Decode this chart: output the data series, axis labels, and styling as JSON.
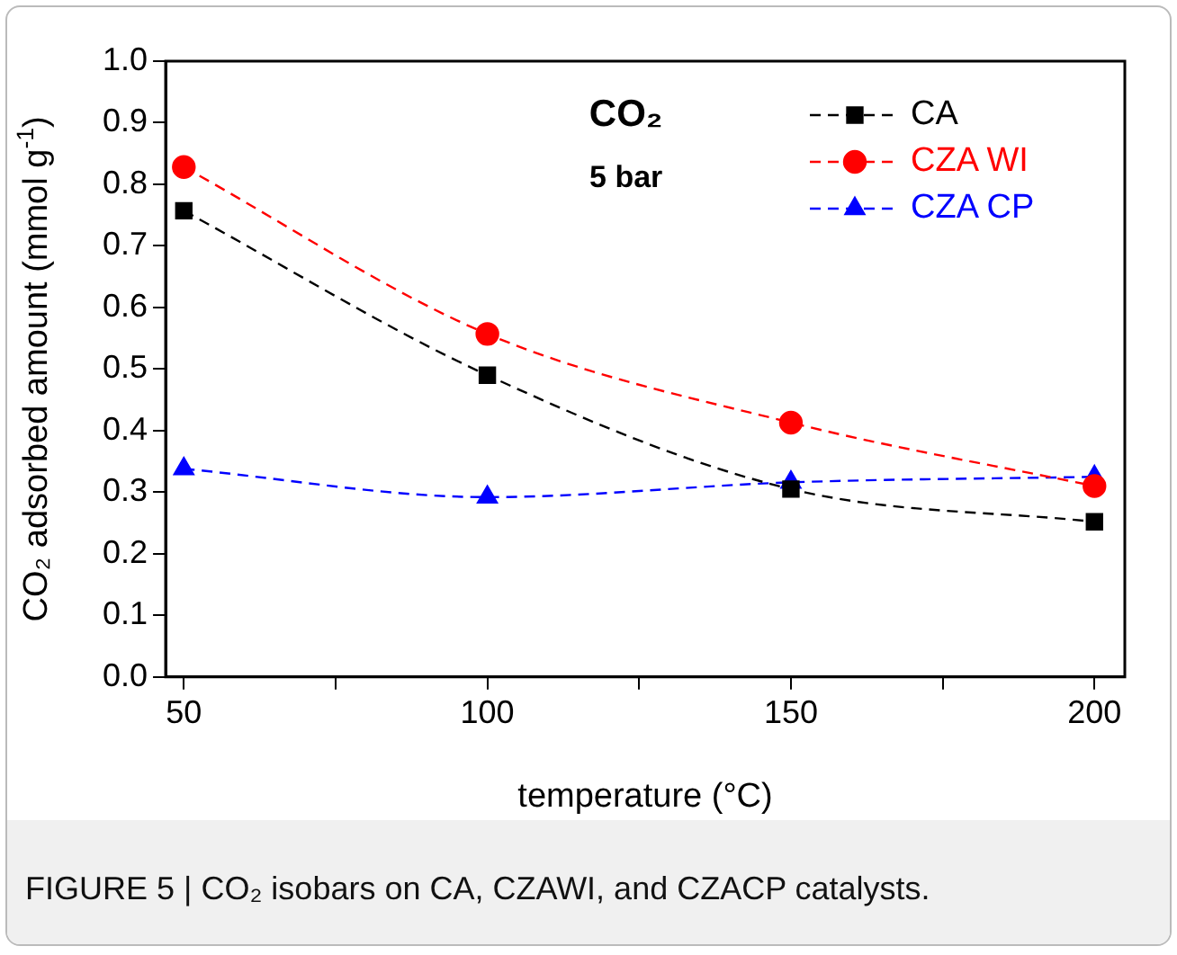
{
  "chart_data": {
    "type": "line",
    "title": "CO₂",
    "subtitle": "5 bar",
    "xlabel": "temperature (°C)",
    "ylabel": "CO₂ adsorbed amount (mmol g$^{-1}$)",
    "x": [
      50,
      100,
      150,
      200
    ],
    "series": [
      {
        "name": "CA",
        "color": "#000000",
        "marker": "square",
        "values": [
          0.757,
          0.49,
          0.305,
          0.252
        ]
      },
      {
        "name": "CZA WI",
        "color": "#ff0000",
        "marker": "circle",
        "values": [
          0.828,
          0.557,
          0.413,
          0.31
        ]
      },
      {
        "name": "CZA CP",
        "color": "#0000ff",
        "marker": "triangle",
        "values": [
          0.338,
          0.292,
          0.316,
          0.325
        ]
      }
    ],
    "xlim": [
      47,
      205
    ],
    "xticks": [
      50,
      {
        "value": 75,
        "label": null
      },
      100,
      {
        "value": 125,
        "label": null
      },
      150,
      {
        "value": 175,
        "label": null
      },
      200
    ],
    "ylim": [
      0,
      1.0
    ],
    "yticks": [
      {
        "value": 0,
        "label": "0.0"
      },
      0.1,
      0.2,
      0.3,
      0.4,
      0.5,
      0.6,
      0.7,
      0.8,
      0.9,
      {
        "value": 1.0,
        "label": "1.0"
      }
    ],
    "line_style": "dashed",
    "grid": false,
    "legend": "top right",
    "annotations": [
      "FIGURE 5 | CO₂ isobars on CA, CZAWI, and CZACP catalysts."
    ]
  }
}
